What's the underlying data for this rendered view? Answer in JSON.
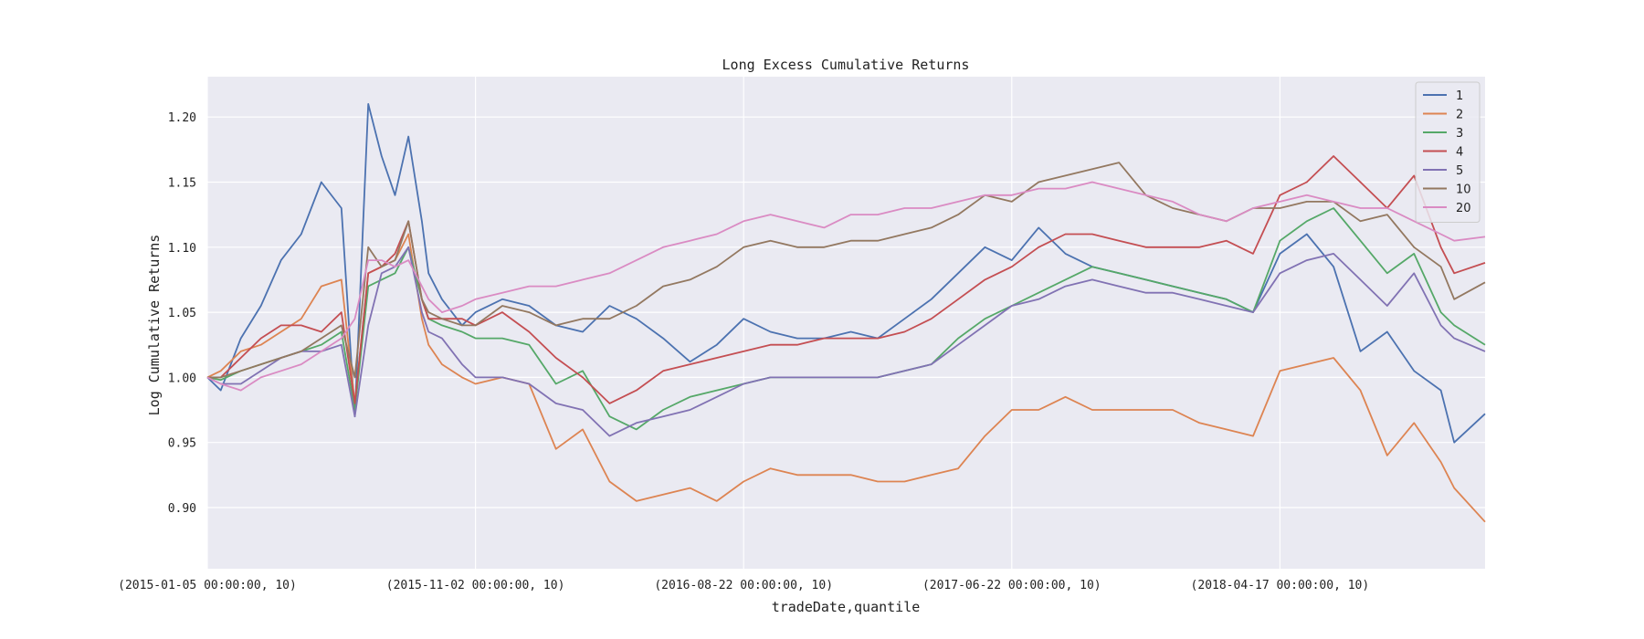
{
  "chart_data": {
    "type": "line",
    "title": "Long Excess Cumulative Returns",
    "xlabel": "tradeDate,quantile",
    "ylabel": "Log Cumulative Returns",
    "x_tick_labels": [
      "(2015-01-05 00:00:00, 10)",
      "(2015-11-02 00:00:00, 10)",
      "(2016-08-22 00:00:00, 10)",
      "(2017-06-22 00:00:00, 10)",
      "(2018-04-17 00:00:00, 10)"
    ],
    "x_tick_index": [
      0,
      200,
      400,
      600,
      800
    ],
    "xlim": [
      0,
      953
    ],
    "y_ticks": [
      0.9,
      0.95,
      1.0,
      1.05,
      1.1,
      1.15,
      1.2
    ],
    "y_tick_labels": [
      "0.90",
      "0.95",
      "1.00",
      "1.05",
      "1.10",
      "1.15",
      "1.20"
    ],
    "ylim": [
      0.853,
      1.231
    ],
    "grid": true,
    "legend_position": "top-right",
    "x": [
      0,
      10,
      25,
      40,
      55,
      70,
      85,
      100,
      110,
      120,
      130,
      140,
      150,
      160,
      165,
      175,
      190,
      200,
      220,
      240,
      260,
      280,
      300,
      320,
      340,
      360,
      380,
      400,
      420,
      440,
      460,
      480,
      500,
      520,
      540,
      560,
      580,
      600,
      620,
      640,
      660,
      680,
      700,
      720,
      740,
      760,
      780,
      800,
      820,
      840,
      860,
      880,
      900,
      920,
      930,
      953
    ],
    "series": [
      {
        "name": "1",
        "color": "#4c72b0",
        "values": [
          1.0,
          0.99,
          1.03,
          1.055,
          1.09,
          1.11,
          1.15,
          1.13,
          0.97,
          1.21,
          1.17,
          1.14,
          1.185,
          1.12,
          1.08,
          1.06,
          1.04,
          1.05,
          1.06,
          1.055,
          1.04,
          1.035,
          1.055,
          1.045,
          1.03,
          1.012,
          1.025,
          1.045,
          1.035,
          1.03,
          1.03,
          1.035,
          1.03,
          1.045,
          1.06,
          1.08,
          1.1,
          1.09,
          1.115,
          1.095,
          1.085,
          1.08,
          1.075,
          1.07,
          1.065,
          1.06,
          1.05,
          1.095,
          1.11,
          1.085,
          1.02,
          1.035,
          1.005,
          0.99,
          0.95,
          0.972
        ]
      },
      {
        "name": "2",
        "color": "#dd8452",
        "values": [
          1.0,
          1.005,
          1.02,
          1.025,
          1.035,
          1.045,
          1.07,
          1.075,
          0.98,
          1.08,
          1.085,
          1.09,
          1.11,
          1.045,
          1.025,
          1.01,
          1.0,
          0.995,
          1.0,
          0.995,
          0.945,
          0.96,
          0.92,
          0.905,
          0.91,
          0.915,
          0.905,
          0.92,
          0.93,
          0.925,
          0.925,
          0.925,
          0.92,
          0.92,
          0.925,
          0.93,
          0.955,
          0.975,
          0.975,
          0.985,
          0.975,
          0.975,
          0.975,
          0.975,
          0.965,
          0.96,
          0.955,
          1.005,
          1.01,
          1.015,
          0.99,
          0.94,
          0.965,
          0.935,
          0.915,
          0.889
        ]
      },
      {
        "name": "3",
        "color": "#55a868",
        "values": [
          1.0,
          0.998,
          1.005,
          1.01,
          1.015,
          1.02,
          1.025,
          1.035,
          0.975,
          1.07,
          1.075,
          1.08,
          1.1,
          1.06,
          1.045,
          1.04,
          1.035,
          1.03,
          1.03,
          1.025,
          0.995,
          1.005,
          0.97,
          0.96,
          0.975,
          0.985,
          0.99,
          0.995,
          1.0,
          1.0,
          1.0,
          1.0,
          1.0,
          1.005,
          1.01,
          1.03,
          1.045,
          1.055,
          1.065,
          1.075,
          1.085,
          1.08,
          1.075,
          1.07,
          1.065,
          1.06,
          1.05,
          1.105,
          1.12,
          1.13,
          1.105,
          1.08,
          1.095,
          1.05,
          1.04,
          1.025
        ]
      },
      {
        "name": "4",
        "color": "#c44e52",
        "values": [
          1.0,
          1.0,
          1.015,
          1.03,
          1.04,
          1.04,
          1.035,
          1.05,
          0.98,
          1.08,
          1.085,
          1.095,
          1.12,
          1.06,
          1.045,
          1.045,
          1.045,
          1.04,
          1.05,
          1.035,
          1.015,
          1.0,
          0.98,
          0.99,
          1.005,
          1.01,
          1.015,
          1.02,
          1.025,
          1.025,
          1.03,
          1.03,
          1.03,
          1.035,
          1.045,
          1.06,
          1.075,
          1.085,
          1.1,
          1.11,
          1.11,
          1.105,
          1.1,
          1.1,
          1.1,
          1.105,
          1.095,
          1.14,
          1.15,
          1.17,
          1.15,
          1.13,
          1.155,
          1.1,
          1.08,
          1.088
        ]
      },
      {
        "name": "5",
        "color": "#8172b3",
        "values": [
          1.0,
          0.995,
          0.995,
          1.005,
          1.015,
          1.02,
          1.02,
          1.025,
          0.97,
          1.04,
          1.08,
          1.085,
          1.1,
          1.05,
          1.035,
          1.03,
          1.01,
          1.0,
          1.0,
          0.995,
          0.98,
          0.975,
          0.955,
          0.965,
          0.97,
          0.975,
          0.985,
          0.995,
          1.0,
          1.0,
          1.0,
          1.0,
          1.0,
          1.005,
          1.01,
          1.025,
          1.04,
          1.055,
          1.06,
          1.07,
          1.075,
          1.07,
          1.065,
          1.065,
          1.06,
          1.055,
          1.05,
          1.08,
          1.09,
          1.095,
          1.075,
          1.055,
          1.08,
          1.04,
          1.03,
          1.02
        ]
      },
      {
        "name": "10",
        "color": "#937860",
        "values": [
          1.0,
          1.0,
          1.005,
          1.01,
          1.015,
          1.02,
          1.03,
          1.04,
          1.0,
          1.1,
          1.085,
          1.09,
          1.12,
          1.06,
          1.05,
          1.045,
          1.04,
          1.04,
          1.055,
          1.05,
          1.04,
          1.045,
          1.045,
          1.055,
          1.07,
          1.075,
          1.085,
          1.1,
          1.105,
          1.1,
          1.1,
          1.105,
          1.105,
          1.11,
          1.115,
          1.125,
          1.14,
          1.135,
          1.15,
          1.155,
          1.16,
          1.165,
          1.14,
          1.13,
          1.125,
          1.12,
          1.13,
          1.13,
          1.135,
          1.135,
          1.12,
          1.125,
          1.1,
          1.085,
          1.06,
          1.073
        ]
      },
      {
        "name": "20",
        "color": "#da8bc3",
        "values": [
          1.0,
          0.995,
          0.99,
          1.0,
          1.005,
          1.01,
          1.02,
          1.03,
          1.045,
          1.09,
          1.09,
          1.085,
          1.09,
          1.07,
          1.06,
          1.05,
          1.055,
          1.06,
          1.065,
          1.07,
          1.07,
          1.075,
          1.08,
          1.09,
          1.1,
          1.105,
          1.11,
          1.12,
          1.125,
          1.12,
          1.115,
          1.125,
          1.125,
          1.13,
          1.13,
          1.135,
          1.14,
          1.14,
          1.145,
          1.145,
          1.15,
          1.145,
          1.14,
          1.135,
          1.125,
          1.12,
          1.13,
          1.135,
          1.14,
          1.135,
          1.13,
          1.13,
          1.12,
          1.11,
          1.105,
          1.108
        ]
      }
    ]
  }
}
